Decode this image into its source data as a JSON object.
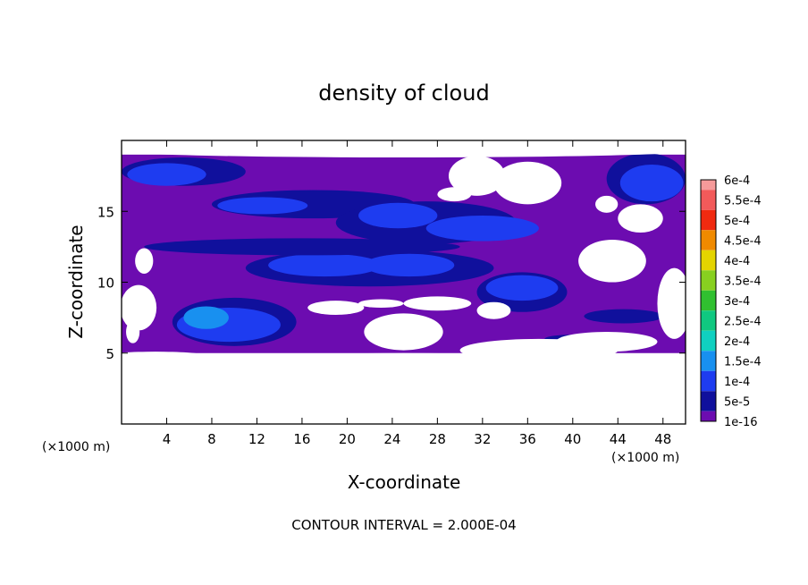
{
  "chart_data": {
    "type": "heatmap",
    "title": "density of cloud",
    "xlabel": "X-coordinate",
    "ylabel": "Z-coordinate",
    "x_unit": "(×1000 m)",
    "x_unit_right": "(×1000 m)",
    "xlim": [
      0,
      50
    ],
    "ylim": [
      0,
      20
    ],
    "x_ticks": [
      4,
      8,
      12,
      16,
      20,
      24,
      28,
      32,
      36,
      40,
      44,
      48
    ],
    "y_ticks": [
      5,
      10,
      15
    ],
    "footer": "CONTOUR INTERVAL = 2.000E-04",
    "colorbar": {
      "labels": [
        "6e-4",
        "5.5e-4",
        "5e-4",
        "4.5e-4",
        "4e-4",
        "3.5e-4",
        "3e-4",
        "2.5e-4",
        "2e-4",
        "1.5e-4",
        "1e-4",
        "5e-5",
        "1e-16"
      ],
      "colors": [
        "#f59a9a",
        "#f25a5a",
        "#f02a10",
        "#f08a00",
        "#e4d400",
        "#88d020",
        "#30c030",
        "#10c880",
        "#10d0c0",
        "#1890f0",
        "#1e3cf0",
        "#10109c",
        "#6c0cb0"
      ]
    },
    "background_color": "#6c0cb0",
    "regions": [
      {
        "level": "5e-5",
        "x": [
          0,
          50
        ],
        "z": [
          5,
          19
        ]
      }
    ],
    "blobs": [
      {
        "level": "5e-5",
        "cx": 5.5,
        "cz": 17.8,
        "rx": 5.5,
        "rz": 1.0
      },
      {
        "level": "1e-4",
        "cx": 4.0,
        "cz": 17.6,
        "rx": 3.5,
        "rz": 0.8
      },
      {
        "level": "5e-5",
        "cx": 17.0,
        "cz": 15.5,
        "rx": 9.0,
        "rz": 1.0
      },
      {
        "level": "1e-4",
        "cx": 12.5,
        "cz": 15.4,
        "rx": 4.0,
        "rz": 0.6
      },
      {
        "level": "5e-5",
        "cx": 27.0,
        "cz": 14.2,
        "rx": 8.0,
        "rz": 1.5
      },
      {
        "level": "1e-4",
        "cx": 24.5,
        "cz": 14.7,
        "rx": 3.5,
        "rz": 0.9
      },
      {
        "level": "1e-4",
        "cx": 32.0,
        "cz": 13.8,
        "rx": 5.0,
        "rz": 0.9
      },
      {
        "level": "5e-5",
        "cx": 46.5,
        "cz": 17.3,
        "rx": 3.5,
        "rz": 1.8
      },
      {
        "level": "1e-4",
        "cx": 47.0,
        "cz": 17.0,
        "rx": 2.8,
        "rz": 1.3
      },
      {
        "level": "5e-5",
        "cx": 22.0,
        "cz": 11.0,
        "rx": 11.0,
        "rz": 1.3
      },
      {
        "level": "1e-4",
        "cx": 18.0,
        "cz": 11.2,
        "rx": 5.0,
        "rz": 0.8
      },
      {
        "level": "1e-4",
        "cx": 25.5,
        "cz": 11.2,
        "rx": 4.0,
        "rz": 0.8
      },
      {
        "level": "5e-5",
        "cx": 35.5,
        "cz": 9.3,
        "rx": 4.0,
        "rz": 1.4
      },
      {
        "level": "1e-4",
        "cx": 35.5,
        "cz": 9.6,
        "rx": 3.2,
        "rz": 0.9
      },
      {
        "level": "5e-5",
        "cx": 10.0,
        "cz": 7.2,
        "rx": 5.5,
        "rz": 1.7
      },
      {
        "level": "1e-4",
        "cx": 9.5,
        "cz": 7.0,
        "rx": 4.6,
        "rz": 1.2
      },
      {
        "level": "1.5e-4",
        "cx": 7.5,
        "cz": 7.5,
        "rx": 2.0,
        "rz": 0.8
      },
      {
        "level": "5e-5",
        "cx": 44.5,
        "cz": 7.6,
        "rx": 3.5,
        "rz": 0.5
      },
      {
        "level": "5e-5",
        "cx": 16.0,
        "cz": 12.5,
        "rx": 14.0,
        "rz": 0.6
      },
      {
        "level": "5e-5",
        "cx": 40.0,
        "cz": 6.0,
        "rx": 2.5,
        "rz": 0.3
      }
    ],
    "clear_areas": [
      {
        "cx": 25.0,
        "cz": 2.2,
        "rx": 26.0,
        "rz": 2.3
      },
      {
        "cx": 3.0,
        "cz": 4.9,
        "rx": 4.0,
        "rz": 0.2
      },
      {
        "cx": 25.0,
        "cz": 4.7,
        "rx": 11.0,
        "rz": 0.3
      },
      {
        "cx": 25.0,
        "cz": 19.3,
        "rx": 26.0,
        "rz": 0.5
      },
      {
        "cx": 25.0,
        "cz": 6.5,
        "rx": 3.5,
        "rz": 1.3
      },
      {
        "cx": 19.0,
        "cz": 8.2,
        "rx": 2.5,
        "rz": 0.5
      },
      {
        "cx": 23.0,
        "cz": 8.5,
        "rx": 2.0,
        "rz": 0.3
      },
      {
        "cx": 28.0,
        "cz": 8.5,
        "rx": 3.0,
        "rz": 0.5
      },
      {
        "cx": 33.0,
        "cz": 8.0,
        "rx": 1.5,
        "rz": 0.6
      },
      {
        "cx": 31.5,
        "cz": 17.5,
        "rx": 2.5,
        "rz": 1.4
      },
      {
        "cx": 36.0,
        "cz": 17.0,
        "rx": 3.0,
        "rz": 1.5
      },
      {
        "cx": 29.5,
        "cz": 16.2,
        "rx": 1.5,
        "rz": 0.5
      },
      {
        "cx": 43.5,
        "cz": 11.5,
        "rx": 3.0,
        "rz": 1.5
      },
      {
        "cx": 46.0,
        "cz": 14.5,
        "rx": 2.0,
        "rz": 1.0
      },
      {
        "cx": 43.0,
        "cz": 15.5,
        "rx": 1.0,
        "rz": 0.6
      },
      {
        "cx": 1.5,
        "cz": 8.2,
        "rx": 1.6,
        "rz": 1.6
      },
      {
        "cx": 2.0,
        "cz": 11.5,
        "rx": 0.8,
        "rz": 0.9
      },
      {
        "cx": 1.0,
        "cz": 6.5,
        "rx": 0.6,
        "rz": 0.8
      },
      {
        "cx": 37.0,
        "cz": 5.2,
        "rx": 7.0,
        "rz": 0.8
      },
      {
        "cx": 43.0,
        "cz": 5.8,
        "rx": 4.5,
        "rz": 0.7
      },
      {
        "cx": 49.0,
        "cz": 8.5,
        "rx": 1.5,
        "rz": 2.5
      }
    ]
  }
}
